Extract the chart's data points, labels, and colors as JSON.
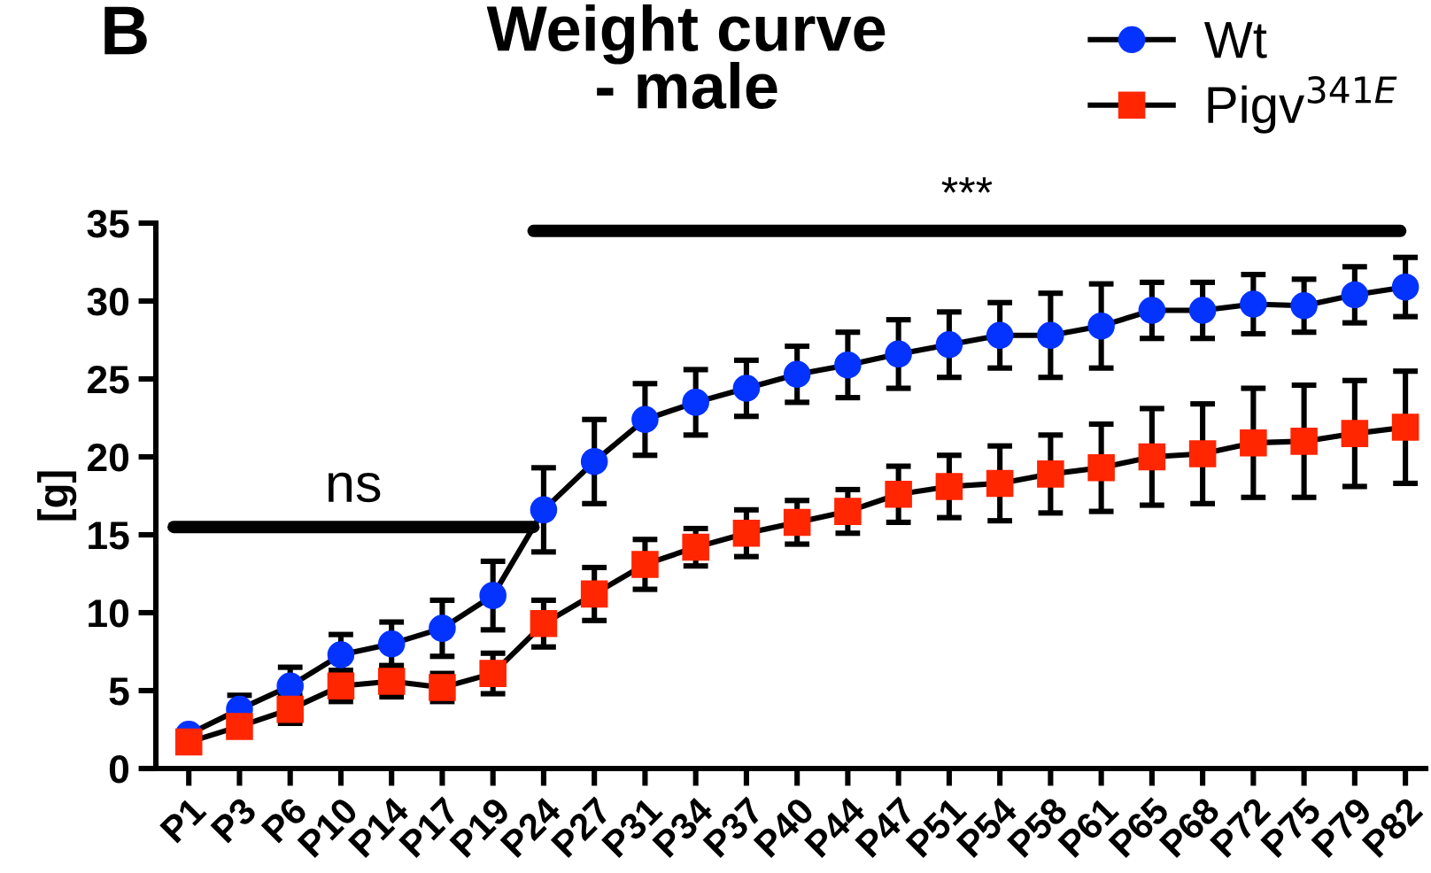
{
  "chart_data": {
    "type": "line",
    "title": "Weight curve\n- male",
    "ylabel": "[g]",
    "categories": [
      "P1",
      "P3",
      "P6",
      "P10",
      "P14",
      "P17",
      "P19",
      "P24",
      "P27",
      "P31",
      "P34",
      "P37",
      "P40",
      "P44",
      "P47",
      "P51",
      "P54",
      "P58",
      "P61",
      "P65",
      "P68",
      "P72",
      "P75",
      "P79",
      "P82"
    ],
    "series": [
      {
        "name": "Wt",
        "color": "#0433ff",
        "marker": "circle",
        "values": [
          2.2,
          3.8,
          5.3,
          7.3,
          8.0,
          9.0,
          11.1,
          16.6,
          19.7,
          22.4,
          23.5,
          24.4,
          25.3,
          25.9,
          26.6,
          27.2,
          27.8,
          27.8,
          28.4,
          29.4,
          29.4,
          29.8,
          29.7,
          30.4,
          30.9
        ],
        "errors": [
          null,
          0.9,
          1.2,
          1.3,
          1.4,
          1.8,
          2.2,
          2.7,
          2.7,
          2.3,
          2.1,
          1.8,
          1.8,
          2.1,
          2.2,
          2.1,
          2.1,
          2.7,
          2.7,
          1.8,
          1.8,
          1.9,
          1.7,
          1.8,
          1.9
        ]
      },
      {
        "name": "Pigv$^{341E}$",
        "color": "#ff2600",
        "marker": "square",
        "values": [
          1.7,
          2.7,
          3.8,
          5.3,
          5.6,
          5.2,
          6.1,
          9.3,
          11.2,
          13.1,
          14.2,
          15.1,
          15.8,
          16.5,
          17.6,
          18.1,
          18.3,
          18.9,
          19.3,
          20.0,
          20.2,
          20.9,
          21.0,
          21.5,
          21.9
        ],
        "errors": [
          null,
          null,
          0.9,
          1.0,
          1.0,
          0.9,
          1.3,
          1.5,
          1.7,
          1.6,
          1.2,
          1.5,
          1.4,
          1.4,
          1.8,
          2.0,
          2.4,
          2.5,
          2.8,
          3.1,
          3.2,
          3.5,
          3.6,
          3.4,
          3.6
        ]
      }
    ],
    "ylim": [
      0,
      35
    ],
    "yticks": [
      0,
      5,
      10,
      15,
      20,
      25,
      30,
      35
    ],
    "grid": false,
    "legend": "top right",
    "line_style": "solid",
    "annotations": [
      "B",
      "ns",
      "***"
    ]
  }
}
